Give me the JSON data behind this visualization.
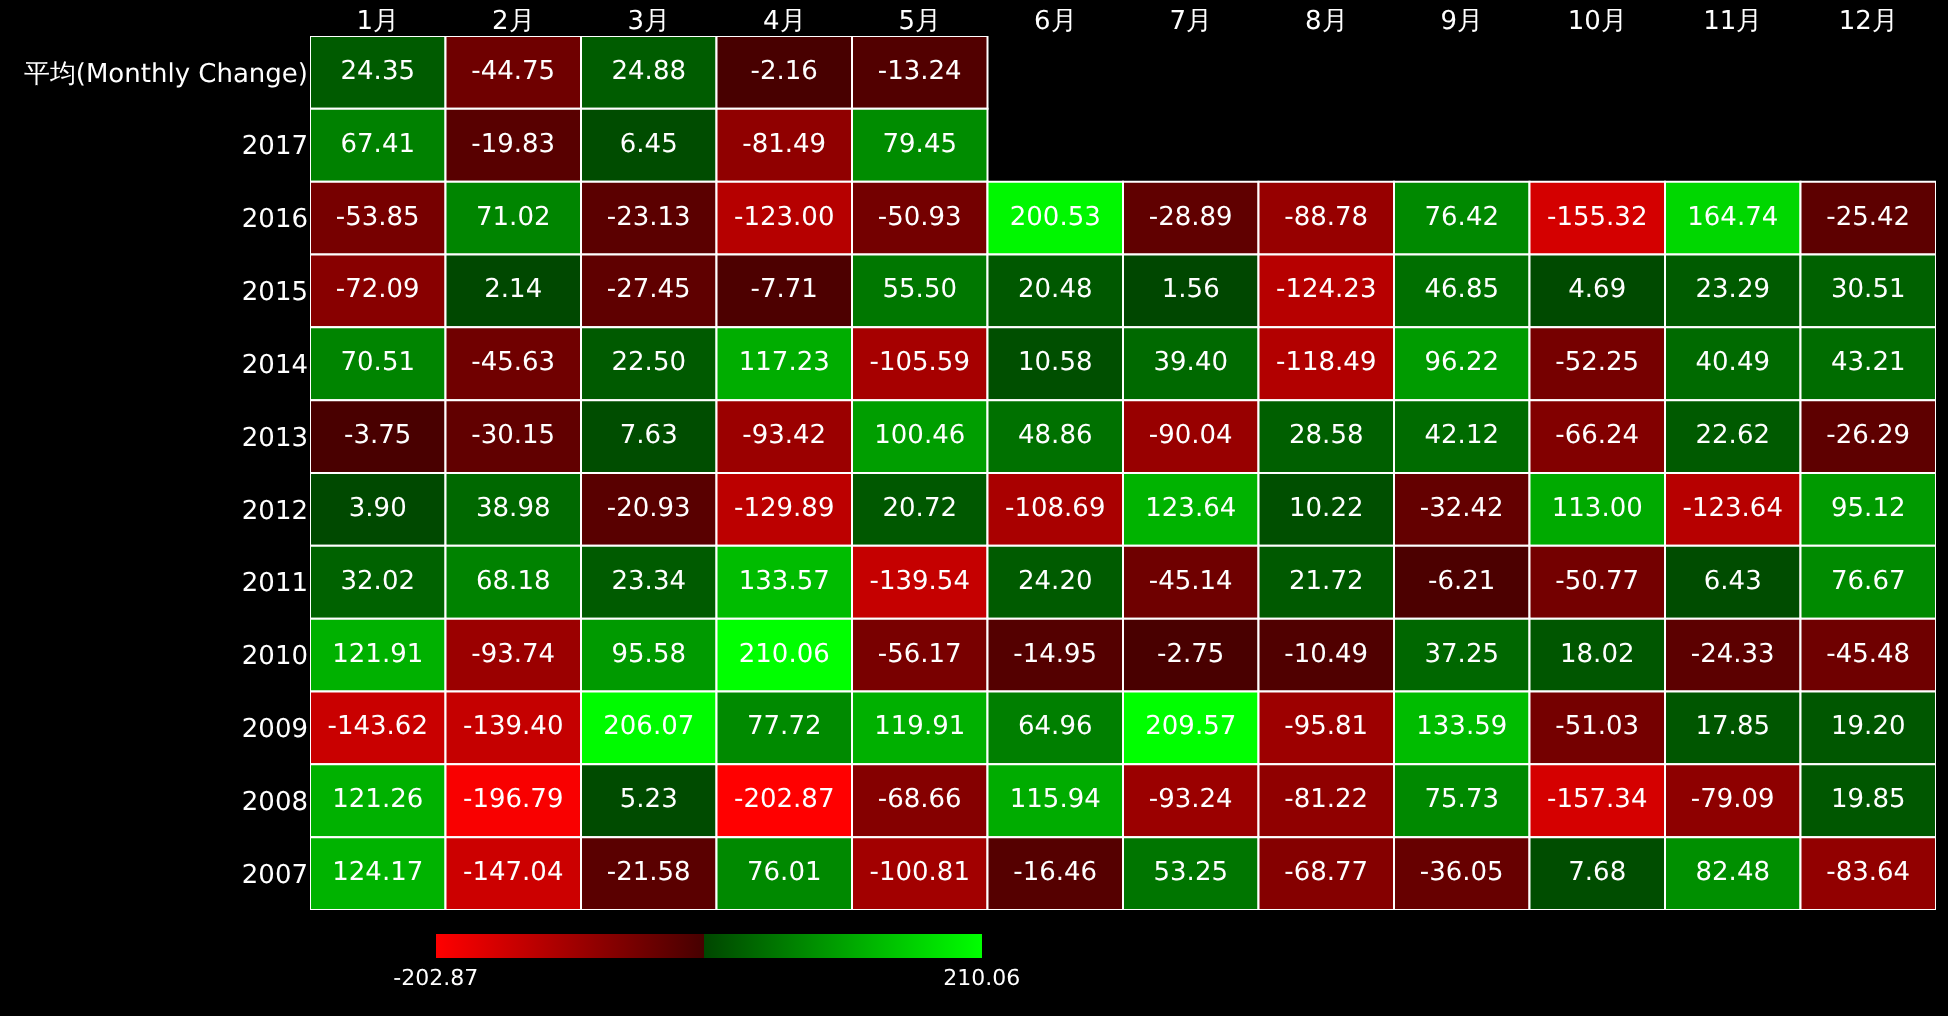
{
  "chart_data": {
    "type": "heatmap",
    "categories": [
      "1月",
      "2月",
      "3月",
      "4月",
      "5月",
      "6月",
      "7月",
      "8月",
      "9月",
      "10月",
      "11月",
      "12月"
    ],
    "y_categories": [
      "平均(Monthly Change)",
      "2017",
      "2016",
      "2015",
      "2014",
      "2013",
      "2012",
      "2011",
      "2010",
      "2009",
      "2008",
      "2007"
    ],
    "cells": [
      [
        24.35,
        -44.75,
        24.88,
        -2.16,
        -13.24,
        null,
        null,
        null,
        null,
        null,
        null,
        null
      ],
      [
        67.41,
        -19.83,
        6.45,
        -81.49,
        79.45,
        null,
        null,
        null,
        null,
        null,
        null,
        null
      ],
      [
        -53.85,
        71.02,
        -23.13,
        -123.0,
        -50.93,
        200.53,
        -28.89,
        -88.78,
        76.42,
        -155.32,
        164.74,
        -25.42
      ],
      [
        -72.09,
        2.14,
        -27.45,
        -7.71,
        55.5,
        20.48,
        1.56,
        -124.23,
        46.85,
        4.69,
        23.29,
        30.51
      ],
      [
        70.51,
        -45.63,
        22.5,
        117.23,
        -105.59,
        10.58,
        39.4,
        -118.49,
        96.22,
        -52.25,
        40.49,
        43.21
      ],
      [
        -3.75,
        -30.15,
        7.63,
        -93.42,
        100.46,
        48.86,
        -90.04,
        28.58,
        42.12,
        -66.24,
        22.62,
        -26.29
      ],
      [
        3.9,
        38.98,
        -20.93,
        -129.89,
        20.72,
        -108.69,
        123.64,
        10.22,
        -32.42,
        113.0,
        -123.64,
        95.12
      ],
      [
        32.02,
        68.18,
        23.34,
        133.57,
        -139.54,
        24.2,
        -45.14,
        21.72,
        -6.21,
        -50.77,
        6.43,
        76.67
      ],
      [
        121.91,
        -93.74,
        95.58,
        210.06,
        -56.17,
        -14.95,
        -2.75,
        -10.49,
        37.25,
        18.02,
        -24.33,
        -45.48
      ],
      [
        -143.62,
        -139.4,
        206.07,
        77.72,
        119.91,
        64.96,
        209.57,
        -95.81,
        133.59,
        -51.03,
        17.85,
        19.2
      ],
      [
        121.26,
        -196.79,
        5.23,
        -202.87,
        -68.66,
        115.94,
        -93.24,
        -81.22,
        75.73,
        -157.34,
        -79.09,
        19.85
      ],
      [
        124.17,
        -147.04,
        -21.58,
        76.01,
        -100.81,
        -16.46,
        53.25,
        -68.77,
        -36.05,
        7.68,
        82.48,
        -83.64
      ]
    ],
    "cell_labels": [
      [
        "24.35",
        "-44.75",
        "24.88",
        "-2.16",
        "-13.24",
        null,
        null,
        null,
        null,
        null,
        null,
        null
      ],
      [
        "67.41",
        "-19.83",
        "6.45",
        "-81.49",
        "79.45",
        null,
        null,
        null,
        null,
        null,
        null,
        null
      ],
      [
        "-53.85",
        "71.02",
        "-23.13",
        "-123.00",
        "-50.93",
        "200.53",
        "-28.89",
        "-88.78",
        "76.42",
        "-155.32",
        "164.74",
        "-25.42"
      ],
      [
        "-72.09",
        "2.14",
        "-27.45",
        "-7.71",
        "55.50",
        "20.48",
        "1.56",
        "-124.23",
        "46.85",
        "4.69",
        "23.29",
        "30.51"
      ],
      [
        "70.51",
        "-45.63",
        "22.50",
        "117.23",
        "-105.59",
        "10.58",
        "39.40",
        "-118.49",
        "96.22",
        "-52.25",
        "40.49",
        "43.21"
      ],
      [
        "-3.75",
        "-30.15",
        "7.63",
        "-93.42",
        "100.46",
        "48.86",
        "-90.04",
        "28.58",
        "42.12",
        "-66.24",
        "22.62",
        "-26.29"
      ],
      [
        "3.90",
        "38.98",
        "-20.93",
        "-129.89",
        "20.72",
        "-108.69",
        "123.64",
        "10.22",
        "-32.42",
        "113.00",
        "-123.64",
        "95.12"
      ],
      [
        "32.02",
        "68.18",
        "23.34",
        "133.57",
        "-139.54",
        "24.20",
        "-45.14",
        "21.72",
        "-6.21",
        "-50.77",
        "6.43",
        "76.67"
      ],
      [
        "121.91",
        "-93.74",
        "95.58",
        "210.06",
        "-56.17",
        "-14.95",
        "-2.75",
        "-10.49",
        "37.25",
        "18.02",
        "-24.33",
        "-45.48"
      ],
      [
        "-143.62",
        "-139.40",
        "206.07",
        "77.72",
        "119.91",
        "64.96",
        "209.57",
        "-95.81",
        "133.59",
        "-51.03",
        "17.85",
        "19.20"
      ],
      [
        "121.26",
        "-196.79",
        "5.23",
        "-202.87",
        "-68.66",
        "115.94",
        "-93.24",
        "-81.22",
        "75.73",
        "-157.34",
        "-79.09",
        "19.85"
      ],
      [
        "124.17",
        "-147.04",
        "-21.58",
        "76.01",
        "-100.81",
        "-16.46",
        "53.25",
        "-68.77",
        "-36.05",
        "7.68",
        "82.48",
        "-83.64"
      ]
    ],
    "clim": [
      -202.87,
      210.06
    ],
    "cticks": [
      -202.87,
      210.06
    ],
    "data_labels": true
  }
}
